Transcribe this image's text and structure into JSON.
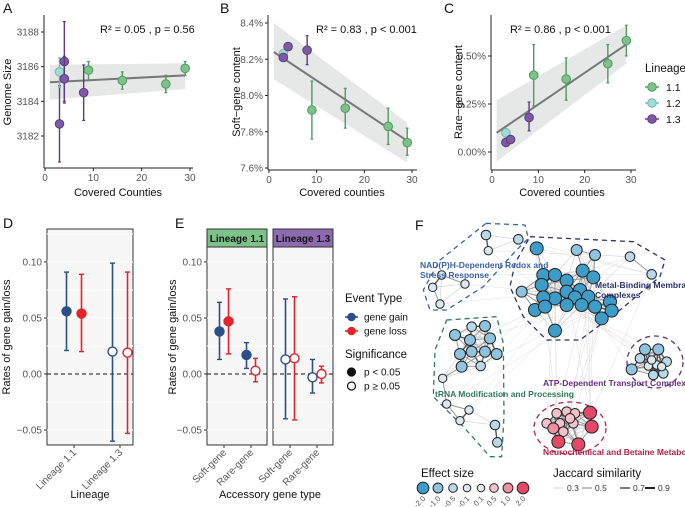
{
  "colors": {
    "lineage_1_1": "#7cc289",
    "lineage_1_2": "#a3dcd3",
    "lineage_1_3": "#7d5aa3",
    "gene_gain": "#2c4f8a",
    "gene_loss": "#e62129",
    "fit_line": "#777777",
    "ci_band": "#e6e8e8"
  },
  "lineage_legend": {
    "title": "Lineage",
    "items": [
      "1.1",
      "1.2",
      "1.3"
    ]
  },
  "event_legend": {
    "title": "Event Type",
    "items": [
      "gene gain",
      "gene loss"
    ]
  },
  "significance_legend": {
    "title": "Significance",
    "items": [
      "p < 0.05",
      "p ≥ 0.05"
    ]
  },
  "chart_data": [
    {
      "panel": "A",
      "type": "scatter",
      "stats": "R² = 0.05 , p = 0.56",
      "xlabel": "Covered Counties",
      "ylabel": "Genome Size",
      "xticks": [
        0,
        10,
        20,
        30
      ],
      "yticks": [
        3182,
        3184,
        3186,
        3188
      ],
      "fit": {
        "x": [
          1,
          29
        ],
        "y": [
          3185.1,
          3185.5
        ],
        "ci_low": [
          3184.1,
          3184.7
        ],
        "ci_high": [
          3186.1,
          3186.2
        ]
      },
      "points": [
        {
          "lineage": "1.3",
          "x": 3,
          "y": 3182.7,
          "lo": 3180.5,
          "hi": 3184.9
        },
        {
          "lineage": "1.2",
          "x": 3,
          "y": 3185.7,
          "lo": 3184.8,
          "hi": 3186.5
        },
        {
          "lineage": "1.3",
          "x": 4,
          "y": 3186.3,
          "lo": 3184.0,
          "hi": 3188.6
        },
        {
          "lineage": "1.3",
          "x": 4,
          "y": 3185.3,
          "lo": 3183.9,
          "hi": 3186.6
        },
        {
          "lineage": "1.3",
          "x": 8,
          "y": 3184.5,
          "lo": 3182.9,
          "hi": 3186.1
        },
        {
          "lineage": "1.1",
          "x": 9,
          "y": 3185.8,
          "lo": 3185.2,
          "hi": 3186.3
        },
        {
          "lineage": "1.1",
          "x": 16,
          "y": 3185.2,
          "lo": 3184.7,
          "hi": 3185.7
        },
        {
          "lineage": "1.1",
          "x": 25,
          "y": 3185.0,
          "lo": 3184.5,
          "hi": 3185.5
        },
        {
          "lineage": "1.1",
          "x": 29,
          "y": 3185.9,
          "lo": 3185.5,
          "hi": 3186.3
        }
      ]
    },
    {
      "panel": "B",
      "type": "scatter",
      "stats": "R² = 0.83 , p < 0.001",
      "xlabel": "Covered counties",
      "ylabel": "Soft−gene content",
      "xticks": [
        0,
        10,
        20,
        30
      ],
      "yticks": [
        7.6,
        7.8,
        8.0,
        8.2,
        8.4
      ],
      "ytick_suffix": "%",
      "fit": {
        "x": [
          1,
          29
        ],
        "y": [
          8.24,
          7.75
        ],
        "ci_low": [
          8.09,
          7.63
        ],
        "ci_high": [
          8.4,
          7.85
        ]
      },
      "points": [
        {
          "lineage": "1.2",
          "x": 3,
          "y": 8.23,
          "lo": 8.23,
          "hi": 8.23
        },
        {
          "lineage": "1.3",
          "x": 3,
          "y": 8.21,
          "lo": 8.21,
          "hi": 8.21
        },
        {
          "lineage": "1.3",
          "x": 4,
          "y": 8.27,
          "lo": 8.27,
          "hi": 8.27
        },
        {
          "lineage": "1.3",
          "x": 8,
          "y": 8.25,
          "lo": 8.17,
          "hi": 8.33
        },
        {
          "lineage": "1.1",
          "x": 9,
          "y": 7.92,
          "lo": 7.76,
          "hi": 8.08
        },
        {
          "lineage": "1.1",
          "x": 16,
          "y": 7.93,
          "lo": 7.82,
          "hi": 8.04
        },
        {
          "lineage": "1.1",
          "x": 25,
          "y": 7.83,
          "lo": 7.73,
          "hi": 7.93
        },
        {
          "lineage": "1.1",
          "x": 29,
          "y": 7.74,
          "lo": 7.67,
          "hi": 7.82
        }
      ]
    },
    {
      "panel": "C",
      "type": "scatter",
      "stats": "R² = 0.86 , p < 0.001",
      "xlabel": "Covered counties",
      "ylabel": "Rare−gene content",
      "xticks": [
        0,
        10,
        20,
        30
      ],
      "yticks": [
        0.0,
        0.25,
        0.5
      ],
      "ytick_labels": [
        "0.00%",
        "0.25%",
        "0.50%"
      ],
      "fit": {
        "x": [
          1,
          29
        ],
        "y": [
          0.1,
          0.56
        ],
        "ci_low": [
          -0.05,
          0.46
        ],
        "ci_high": [
          0.27,
          0.66
        ]
      },
      "points": [
        {
          "lineage": "1.2",
          "x": 3,
          "y": 0.1,
          "lo": 0.1,
          "hi": 0.1
        },
        {
          "lineage": "1.3",
          "x": 3,
          "y": 0.05,
          "lo": 0.05,
          "hi": 0.05
        },
        {
          "lineage": "1.3",
          "x": 4,
          "y": 0.065,
          "lo": 0.065,
          "hi": 0.065
        },
        {
          "lineage": "1.3",
          "x": 8,
          "y": 0.18,
          "lo": 0.11,
          "hi": 0.26
        },
        {
          "lineage": "1.1",
          "x": 9,
          "y": 0.4,
          "lo": 0.24,
          "hi": 0.56
        },
        {
          "lineage": "1.1",
          "x": 16,
          "y": 0.38,
          "lo": 0.27,
          "hi": 0.49
        },
        {
          "lineage": "1.1",
          "x": 25,
          "y": 0.46,
          "lo": 0.36,
          "hi": 0.56
        },
        {
          "lineage": "1.1",
          "x": 29,
          "y": 0.58,
          "lo": 0.5,
          "hi": 0.66
        }
      ]
    },
    {
      "panel": "D",
      "type": "errorbar",
      "xlabel": "Lineage",
      "ylabel": "Rates of gene gain/loss",
      "categories": [
        "Lineage 1.1",
        "Lineage 1.3"
      ],
      "yticks": [
        -0.05,
        0.0,
        0.05,
        0.1
      ],
      "ytick_labels": [
        "−0.05",
        "0.00",
        "0.05",
        "0.10"
      ],
      "series": [
        {
          "name": "gene gain",
          "values": [
            0.056,
            0.02
          ],
          "lo": [
            0.021,
            -0.06
          ],
          "hi": [
            0.091,
            0.099
          ],
          "significant": [
            true,
            false
          ]
        },
        {
          "name": "gene loss",
          "values": [
            0.054,
            0.019
          ],
          "lo": [
            0.02,
            -0.053
          ],
          "hi": [
            0.089,
            0.091
          ],
          "significant": [
            true,
            false
          ]
        }
      ]
    },
    {
      "panel": "E",
      "type": "errorbar",
      "xlabel": "Accessory gene type",
      "ylabel": "Rates of gene gain/loss",
      "facets": [
        "Lineage 1.1",
        "Lineage 1.3"
      ],
      "categories": [
        "Soft-gene",
        "Rare-gene"
      ],
      "yticks": [
        -0.05,
        0.0,
        0.05,
        0.1
      ],
      "ytick_labels": [
        "−0.05",
        "0.00",
        "0.05",
        "0.10"
      ],
      "series": [
        {
          "name": "gene gain",
          "facet": "Lineage 1.1",
          "values": [
            0.038,
            0.017
          ],
          "lo": [
            0.013,
            0.005
          ],
          "hi": [
            0.064,
            0.028
          ],
          "significant": [
            true,
            true
          ]
        },
        {
          "name": "gene loss",
          "facet": "Lineage 1.1",
          "values": [
            0.047,
            0.003
          ],
          "lo": [
            0.018,
            -0.007
          ],
          "hi": [
            0.076,
            0.014
          ],
          "significant": [
            true,
            false
          ]
        },
        {
          "name": "gene gain",
          "facet": "Lineage 1.3",
          "values": [
            0.013,
            -0.003
          ],
          "lo": [
            -0.04,
            -0.017
          ],
          "hi": [
            0.067,
            0.013
          ],
          "significant": [
            false,
            false
          ]
        },
        {
          "name": "gene loss",
          "facet": "Lineage 1.3",
          "values": [
            0.014,
            0.0
          ],
          "lo": [
            -0.041,
            -0.008
          ],
          "hi": [
            0.069,
            0.007
          ],
          "significant": [
            false,
            false
          ]
        }
      ]
    },
    {
      "panel": "F",
      "type": "network",
      "effect_legend": {
        "title": "Effect size",
        "levels": [
          "-2.0",
          "-1.0",
          "-0.5",
          "-0.1",
          "0.1",
          "0.5",
          "1.0",
          "2.0"
        ],
        "colors": [
          "#3d9cc8",
          "#8ec4e0",
          "#b9d8ea",
          "#dce8ef",
          "#f0e6e8",
          "#f4c3ca",
          "#ee90a1",
          "#e44a68"
        ]
      },
      "jaccard_legend": {
        "title": "Jaccard similarity",
        "levels": [
          "0.3",
          "0.5",
          "0.7",
          "0.9"
        ]
      },
      "clusters": [
        {
          "label": [
            "NAD(P)H-Dependent Redox and",
            "Stress Response"
          ],
          "color": "#3a64a8",
          "node_effects": [
            -0.5,
            -0.1,
            -0.5,
            -0.1,
            -0.1,
            -0.1,
            -0.1
          ]
        },
        {
          "label": [
            "Metal-Binding Membrane",
            "Complexes"
          ],
          "color": "#27346b",
          "node_effects": [
            -2.0,
            -1.0,
            -1.0,
            -0.5,
            -0.5,
            -2.0,
            -2.0,
            -2.0,
            -2.0,
            -2.0,
            -1.0,
            -2.0,
            -2.0,
            -2.0,
            -2.0,
            -2.0,
            -2.0,
            -2.0,
            -2.0,
            -2.0,
            -2.0,
            -2.0,
            -2.0,
            -2.0,
            -2.0,
            -2.0,
            -2.0
          ]
        },
        {
          "label": [
            "ATP-Dependent Transport Complexes"
          ],
          "color": "#6a2f80",
          "node_effects": [
            -1.0,
            -1.0,
            -0.5,
            -0.5,
            -0.5,
            -0.1,
            -0.1,
            -0.1,
            -1.0,
            -0.1,
            -0.5
          ]
        },
        {
          "label": [
            "tRNA Modification and Processing"
          ],
          "color": "#2f7a5c",
          "node_effects": [
            -1.0,
            -0.5,
            -1.0,
            -1.0,
            -1.0,
            -1.0,
            -1.0,
            -1.0,
            -1.0,
            -1.0,
            -0.5,
            -0.1,
            -0.1,
            -0.1,
            -0.1,
            -0.5,
            -0.5
          ]
        },
        {
          "label": [
            "Neurochemical and Betaine Metabolism"
          ],
          "color": "#b3224a",
          "node_effects": [
            0.5,
            0.5,
            0.5,
            2.0,
            0.5,
            0.5,
            0.5,
            1.0,
            0.5,
            2.0,
            2.0,
            2.0,
            0.5
          ]
        }
      ]
    }
  ]
}
